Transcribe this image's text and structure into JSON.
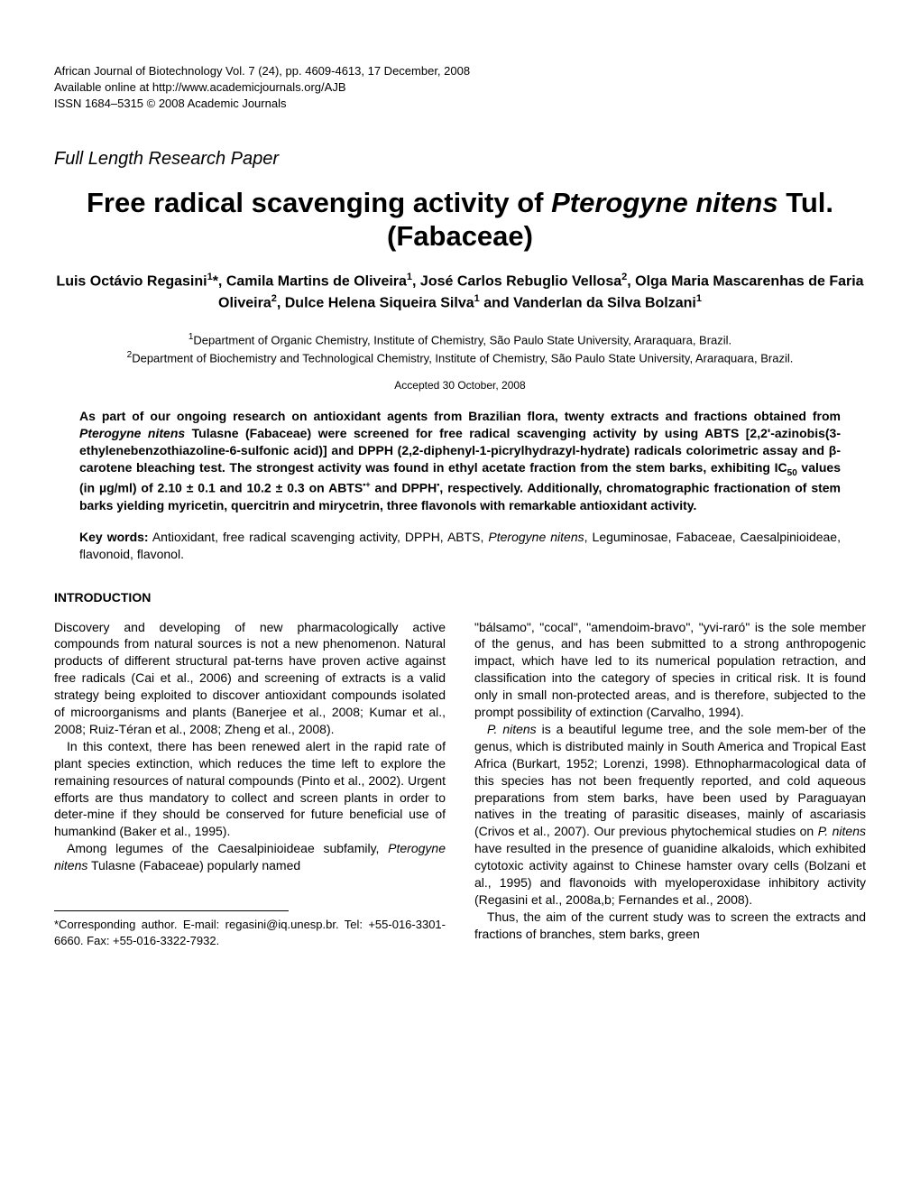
{
  "header": {
    "line1": "African Journal of Biotechnology Vol. 7 (24), pp. 4609-4613, 17 December, 2008",
    "line2": "Available online at http://www.academicjournals.org/AJB",
    "line3": "ISSN 1684–5315 © 2008 Academic Journals"
  },
  "articleType": "Full Length Research Paper",
  "title": {
    "part1": "Free radical scavenging activity of ",
    "italic": "Pterogyne nitens",
    "part2": " Tul. (Fabaceae)"
  },
  "authors": {
    "a1": "Luis Octávio Regasini",
    "a1sup": "1",
    "a1star": "*, ",
    "a2": "Camila Martins de Oliveira",
    "a2sup": "1",
    "sep2": ", ",
    "a3": "José Carlos Rebuglio Vellosa",
    "a3sup": "2",
    "sep3": ", ",
    "a4": "Olga Maria Mascarenhas de Faria Oliveira",
    "a4sup": "2",
    "sep4": ", ",
    "a5": "Dulce Helena Siqueira Silva",
    "a5sup": "1",
    "sep5": " and ",
    "a6": "Vanderlan da Silva Bolzani",
    "a6sup": "1"
  },
  "affiliations": {
    "aff1sup": "1",
    "aff1": "Department of Organic Chemistry, Institute of Chemistry, São Paulo State University, Araraquara, Brazil.",
    "aff2sup": "2",
    "aff2": "Department of Biochemistry and Technological Chemistry, Institute of Chemistry, São Paulo State University, Araraquara, Brazil."
  },
  "accepted": "Accepted 30 October, 2008",
  "abstract": {
    "p1a": "As part of our ongoing research on antioxidant agents from Brazilian flora, twenty extracts and fractions obtained from ",
    "p1italic": "Pterogyne nitens",
    "p1b": " Tulasne (Fabaceae) were screened for free radical scavenging activity by using ABTS [2,2'-azinobis(3-ethylenebenzothiazoline-6-sulfonic acid)] and DPPH (2,2-diphenyl-1-picrylhydrazyl-hydrate) radicals colorimetric assay and β-carotene bleaching test. The strongest activity was found in ethyl acetate fraction from the stem barks, exhibiting IC",
    "p1sub": "50",
    "p1c": " values (in µg/ml) of 2.10 ± 0.1 and 10.2 ± 0.3 on ABTS",
    "p1sup1": "•+",
    "p1d": " and DPPH",
    "p1sup2": "•",
    "p1e": ", respectively. Additionally, chromatographic fractionation of stem barks yielding myricetin, quercitrin and mirycetrin, three flavonols with remarkable antioxidant activity."
  },
  "keywords": {
    "label": "Key words:",
    "text": " Antioxidant, free radical scavenging activity, DPPH, ABTS, ",
    "italic": "Pterogyne nitens",
    "text2": ", Leguminosae, Fabaceae, Caesalpinioideae, flavonoid, flavonol."
  },
  "intro": {
    "heading": "INTRODUCTION",
    "col1": {
      "p1": "Discovery and developing of new pharmacologically active compounds from natural sources is not a new phenomenon. Natural products of different structural pat-terns have proven active against free radicals (Cai et al., 2006) and screening of extracts is a valid strategy being exploited to discover antioxidant compounds isolated of microorganisms and plants (Banerjee et al., 2008; Kumar et al., 2008; Ruiz-Téran et al., 2008; Zheng et al., 2008).",
      "p2": "In this context, there has been renewed alert in the rapid rate of plant species extinction, which reduces the time left to explore the remaining resources of natural compounds (Pinto et al., 2002). Urgent efforts are thus mandatory to collect and screen plants in order to deter-mine if they should be conserved for future beneficial use of humankind (Baker et al., 1995).",
      "p3a": "Among legumes of the Caesalpinioideae subfamily, ",
      "p3italic": "Pterogyne nitens",
      "p3b": " Tulasne (Fabaceae) popularly named"
    },
    "col2": {
      "p1": "\"bálsamo\", \"cocal\", \"amendoim-bravo\", \"yvi-raró\" is the sole member of the genus, and has been submitted to a strong anthropogenic impact, which have led to its numerical population retraction, and classification into the category of species in critical risk. It is found only in small non-protected areas, and is therefore, subjected to the prompt possibility of extinction (Carvalho, 1994).",
      "p2a": "",
      "p2italic1": "P. nitens",
      "p2b": " is a beautiful legume tree, and the sole mem-ber of the genus, which is distributed mainly in South America and Tropical East Africa (Burkart, 1952; Lorenzi, 1998). Ethnopharmacological data of this species has not been frequently reported, and cold aqueous preparations from stem barks, have been used by Paraguayan natives in the treating of parasitic diseases, mainly of ascariasis (Crivos et al., 2007). Our previous phytochemical studies on ",
      "p2italic2": "P. nitens",
      "p2c": " have resulted in the presence of guanidine alkaloids, which exhibited cytotoxic activity against to Chinese hamster ovary cells (Bolzani et al., 1995) and flavonoids with myeloperoxidase inhibitory activity (Regasini et al., 2008a,b; Fernandes et al., 2008).",
      "p3": "Thus, the aim of the current study was to screen the extracts and fractions of branches, stem barks, green"
    }
  },
  "footnote": "*Corresponding author. E-mail: regasini@iq.unesp.br. Tel: +55-016-3301-6660. Fax: +55-016-3322-7932."
}
